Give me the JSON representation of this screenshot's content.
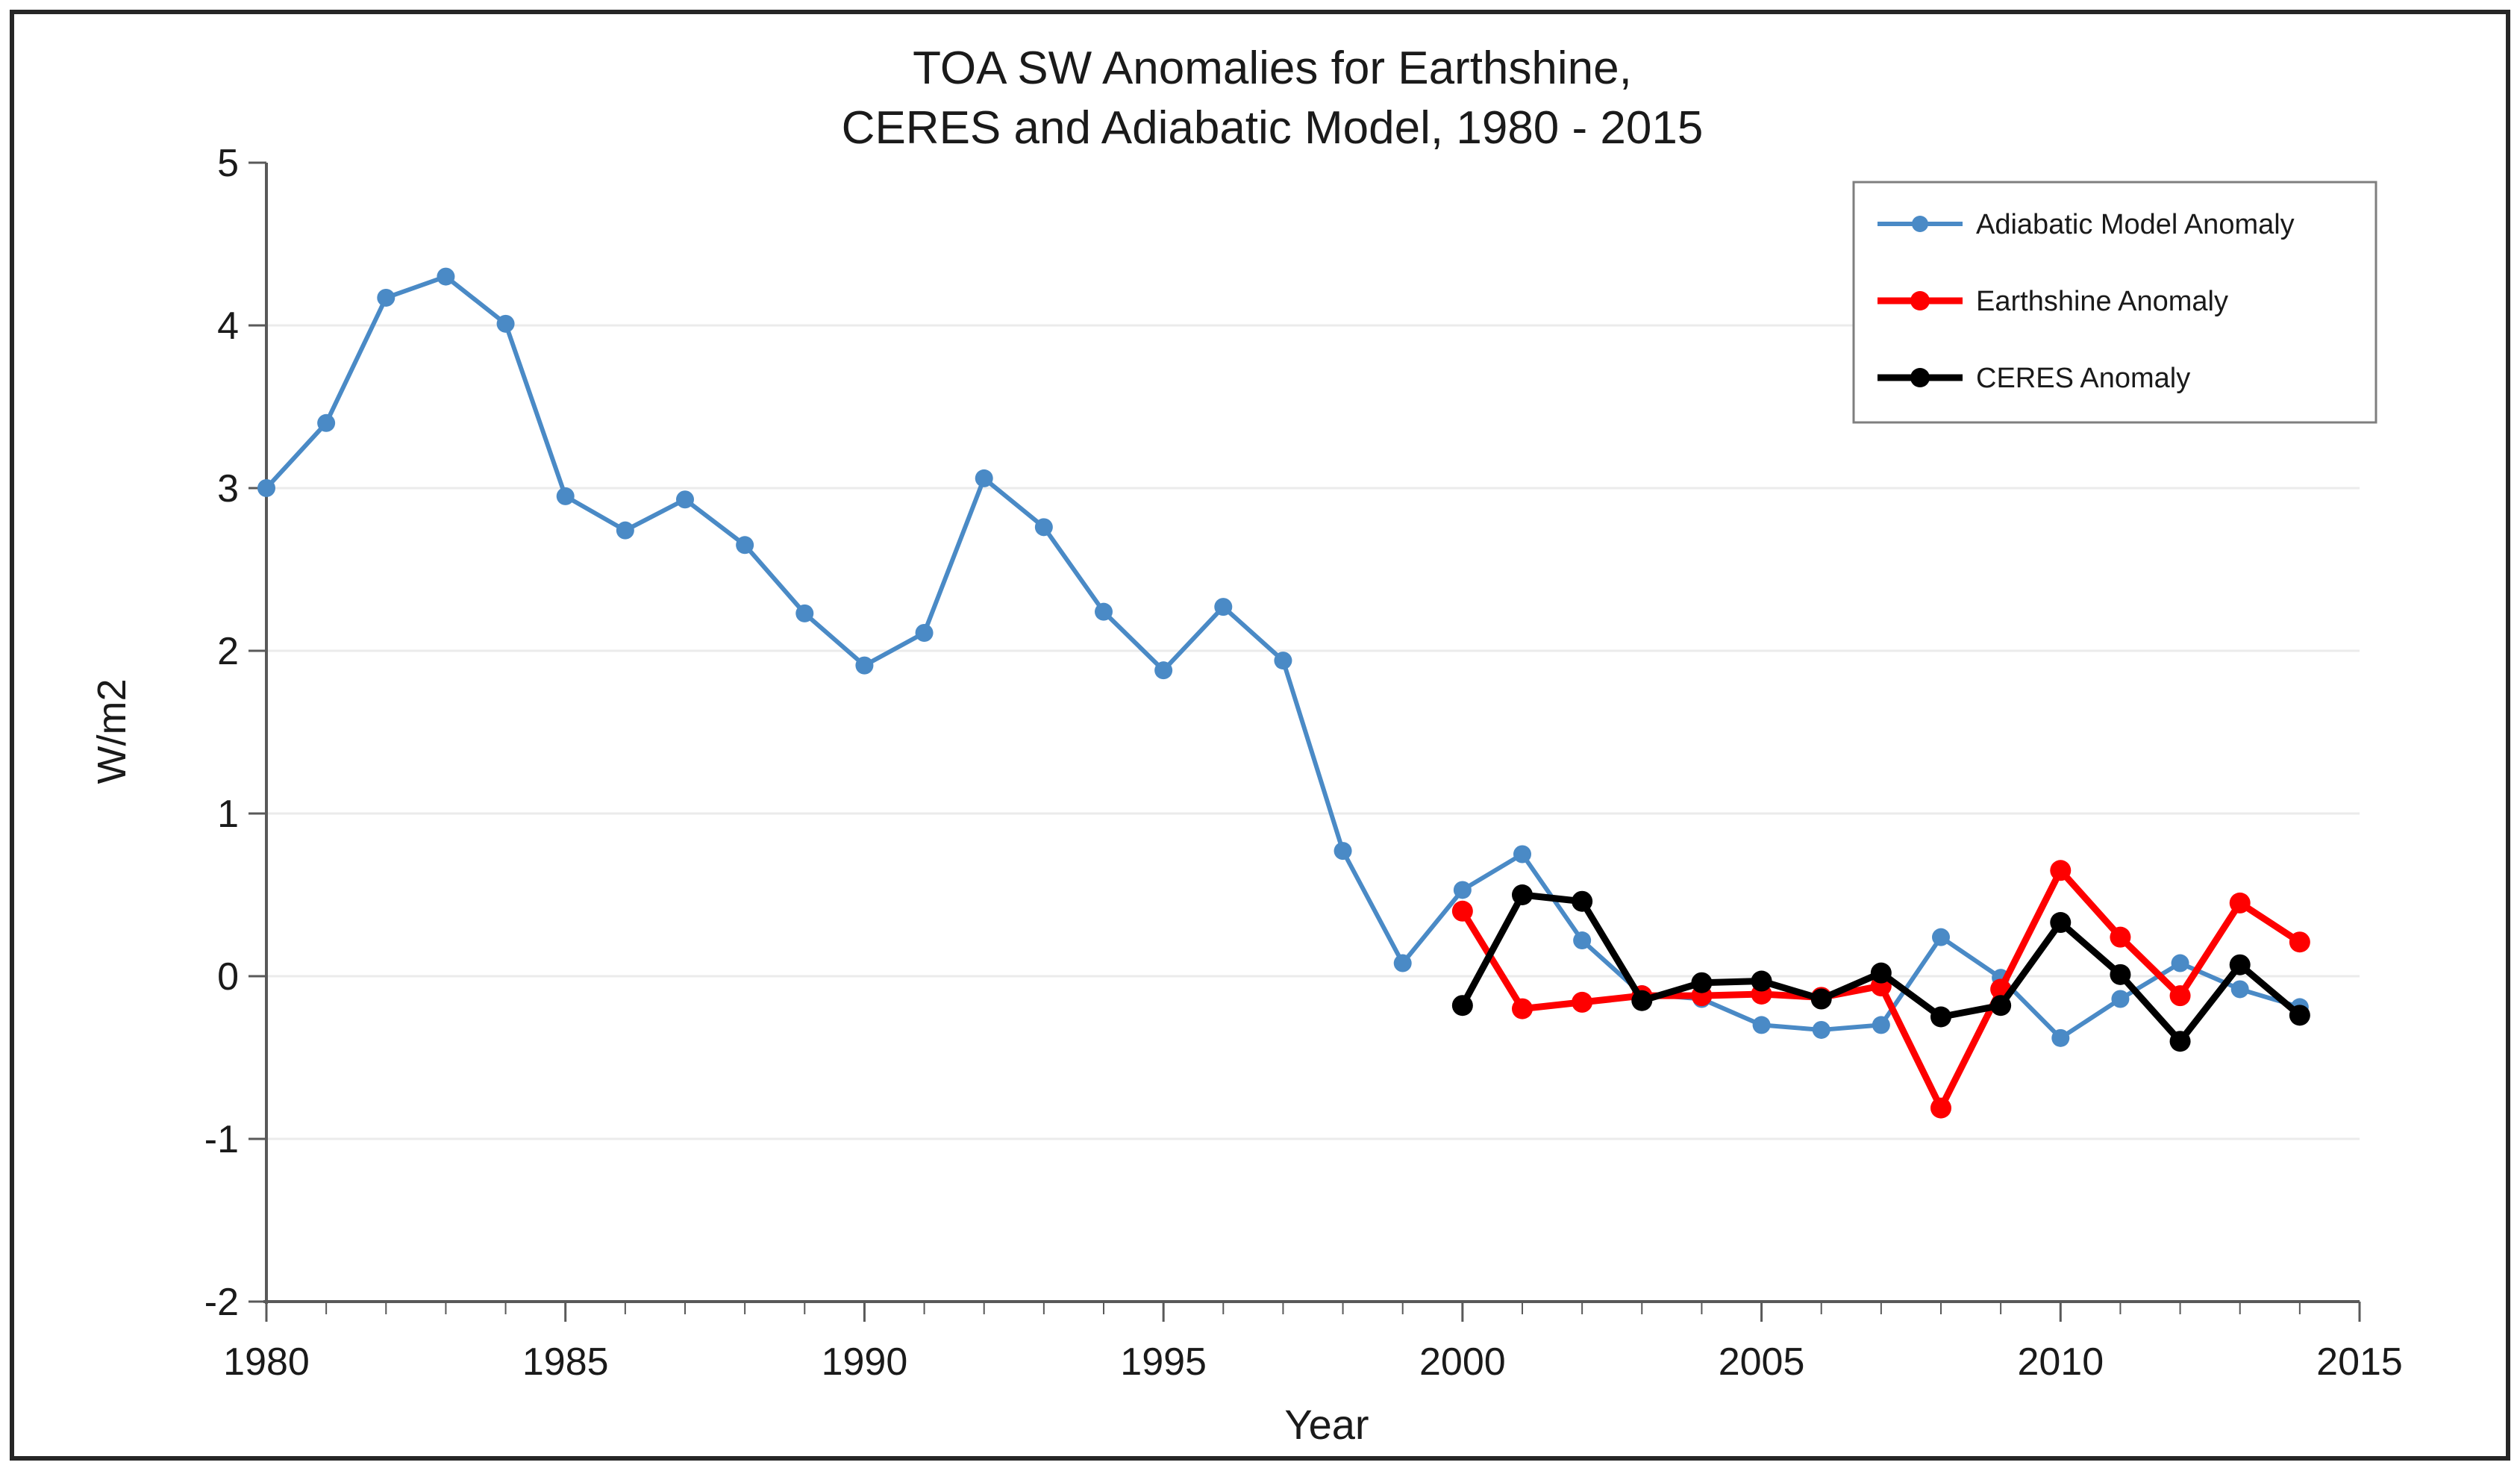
{
  "page": {
    "background": "#ffffff",
    "border_color": "#262626"
  },
  "chart_data": {
    "type": "line",
    "title_lines": [
      "TOA SW Anomalies for Earthshine,",
      "CERES and Adiabatic Model, 1980 - 2015"
    ],
    "xlabel": "Year",
    "ylabel": "W/m2",
    "xlim": [
      1980,
      2015
    ],
    "ylim": [
      -2,
      5
    ],
    "x_tick_labels": [
      "1980",
      "1985",
      "1990",
      "1995",
      "2000",
      "2005",
      "2010",
      "2015"
    ],
    "x_tick_values": [
      1980,
      1985,
      1990,
      1995,
      2000,
      2005,
      2010,
      2015
    ],
    "x_minor_tick_step": 1,
    "y_tick_values": [
      5,
      4,
      3,
      2,
      1,
      0,
      -1,
      -2
    ],
    "y_tick_labels": [
      "5",
      "4",
      "3",
      "2",
      "1",
      "0",
      "-1",
      "-2"
    ],
    "gridline_values": [
      4,
      3,
      2,
      1,
      0,
      -1
    ],
    "grid_on": true,
    "legend_position": "top-right",
    "axis_color": "#595959",
    "gridline_color": "#ebebeb",
    "series": [
      {
        "name": "Adiabatic Model Anomaly",
        "color": "#4a8ac6",
        "marker": "circle",
        "x": [
          1980,
          1981,
          1982,
          1983,
          1984,
          1985,
          1986,
          1987,
          1988,
          1989,
          1990,
          1991,
          1992,
          1993,
          1994,
          1995,
          1996,
          1997,
          1998,
          1999,
          2000,
          2001,
          2002,
          2003,
          2004,
          2005,
          2006,
          2007,
          2008,
          2009,
          2010,
          2011,
          2012,
          2013,
          2014
        ],
        "values": [
          3.0,
          3.4,
          4.17,
          4.3,
          4.01,
          2.95,
          2.74,
          2.93,
          2.65,
          2.23,
          1.91,
          2.11,
          3.06,
          2.76,
          2.24,
          1.88,
          2.27,
          1.94,
          0.77,
          0.08,
          0.53,
          0.75,
          0.22,
          -0.11,
          -0.14,
          -0.3,
          -0.33,
          -0.3,
          0.24,
          -0.01,
          -0.38,
          -0.14,
          0.08,
          -0.08,
          -0.19
        ]
      },
      {
        "name": "Earthshine Anomaly",
        "color": "#fe0000",
        "marker": "circle",
        "x": [
          2000,
          2001,
          2002,
          2003,
          2004,
          2005,
          2006,
          2007,
          2008,
          2009,
          2010,
          2011,
          2012,
          2013,
          2014
        ],
        "values": [
          0.4,
          -0.2,
          -0.16,
          -0.12,
          -0.12,
          -0.11,
          -0.13,
          -0.06,
          -0.81,
          -0.08,
          0.65,
          0.24,
          -0.12,
          0.45,
          0.21
        ]
      },
      {
        "name": "CERES Anomaly",
        "color": "#000000",
        "marker": "circle",
        "x": [
          2000,
          2001,
          2002,
          2003,
          2004,
          2005,
          2006,
          2007,
          2008,
          2009,
          2010,
          2011,
          2012,
          2013,
          2014
        ],
        "values": [
          -0.18,
          0.5,
          0.46,
          -0.15,
          -0.04,
          -0.03,
          -0.14,
          0.02,
          -0.25,
          -0.18,
          0.33,
          0.01,
          -0.4,
          0.07,
          -0.24
        ]
      }
    ]
  }
}
